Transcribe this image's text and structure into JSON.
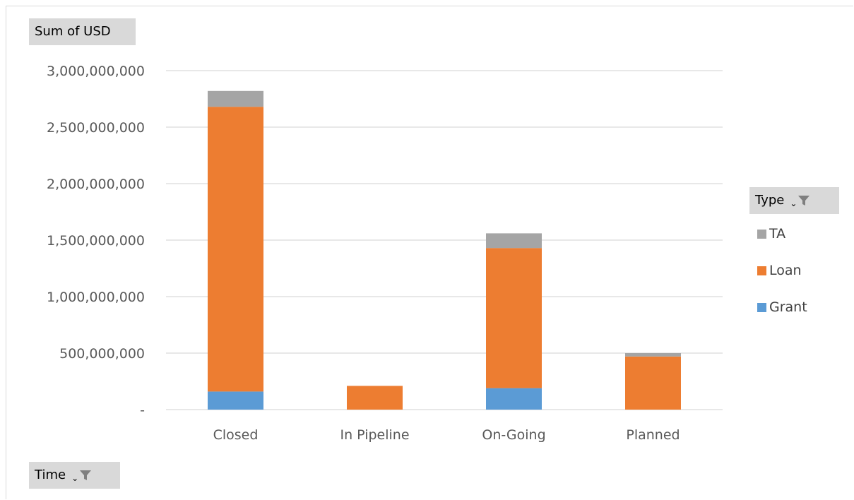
{
  "value_field_label": "Sum of USD",
  "legend_field_label": "Type",
  "axis_field_label": "Time",
  "legend": [
    {
      "name": "TA",
      "color": "#a5a5a5"
    },
    {
      "name": "Loan",
      "color": "#ed7d31"
    },
    {
      "name": "Grant",
      "color": "#5b9bd5"
    }
  ],
  "chart_data": {
    "type": "bar",
    "stacked": true,
    "categories": [
      "Closed",
      "In Pipeline",
      "On-Going",
      "Planned"
    ],
    "series": [
      {
        "name": "Grant",
        "color": "#5b9bd5",
        "values": [
          160000000,
          0,
          190000000,
          0
        ]
      },
      {
        "name": "Loan",
        "color": "#ed7d31",
        "values": [
          2520000000,
          210000000,
          1240000000,
          470000000
        ]
      },
      {
        "name": "TA",
        "color": "#a5a5a5",
        "values": [
          140000000,
          0,
          130000000,
          30000000
        ]
      }
    ],
    "ylim": [
      0,
      3000000000
    ],
    "yticks": [
      0,
      500000000,
      1000000000,
      1500000000,
      2000000000,
      2500000000,
      3000000000
    ],
    "ytick_labels": [
      "-",
      "500,000,000",
      "1,000,000,000",
      "1,500,000,000",
      "2,000,000,000",
      "2,500,000,000",
      "3,000,000,000"
    ],
    "grid": true,
    "legend_position": "right"
  }
}
